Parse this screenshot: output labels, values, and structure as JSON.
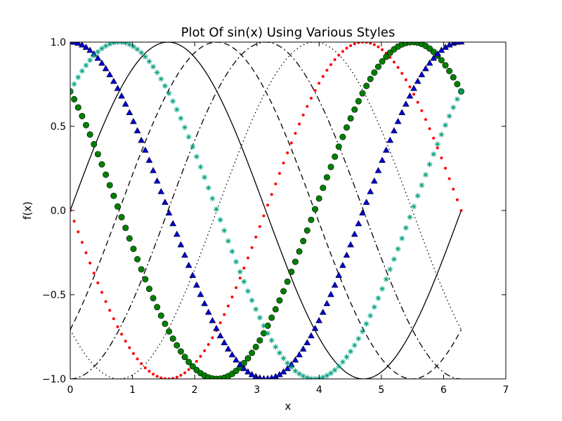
{
  "chart_data": {
    "type": "line",
    "title": "Plot Of sin(x) Using Various Styles",
    "xlabel": "x",
    "ylabel": "f(x)",
    "xlim": [
      0,
      7
    ],
    "ylim": [
      -1.0,
      1.0
    ],
    "x_ticks": [
      0,
      1,
      2,
      3,
      4,
      5,
      6,
      7
    ],
    "x_tick_labels": [
      "0",
      "1",
      "2",
      "3",
      "4",
      "5",
      "6",
      "7"
    ],
    "y_ticks": [
      -1.0,
      -0.5,
      0.0,
      0.5,
      1.0
    ],
    "y_tick_labels": [
      "−1.0",
      "−0.5",
      "0.0",
      "0.5",
      "1.0"
    ],
    "grid": false,
    "legend": "none",
    "x_range": [
      0,
      6.2832
    ],
    "series": [
      {
        "function": "sin(x)",
        "phase": 0.0,
        "style": "solid line",
        "color": "#000000",
        "samples": 200
      },
      {
        "function": "sin(x - pi/4)",
        "phase": 0.7854,
        "style": "dashed line",
        "color": "#000000",
        "samples": 200
      },
      {
        "function": "sin(x - pi/2)",
        "phase": 1.5708,
        "style": "dash-dot line",
        "color": "#000000",
        "samples": 200
      },
      {
        "function": "sin(x - 3pi/4)",
        "phase": 2.3562,
        "style": "dotted line",
        "color": "#000000",
        "samples": 200
      },
      {
        "function": "sin(x - pi)",
        "phase": 3.1416,
        "style": "point markers",
        "color": "#ff0000",
        "samples": 100
      },
      {
        "function": "sin(x - 5pi/4)",
        "phase": 3.927,
        "style": "circle markers",
        "color": "#008000",
        "samples": 100
      },
      {
        "function": "sin(x - 3pi/2)",
        "phase": 4.7124,
        "style": "triangle markers",
        "color": "#0000cc",
        "samples": 100
      },
      {
        "function": "sin(x - 7pi/4)",
        "phase": 5.4978,
        "style": "star markers",
        "color": "#00a080",
        "samples": 100
      }
    ]
  }
}
